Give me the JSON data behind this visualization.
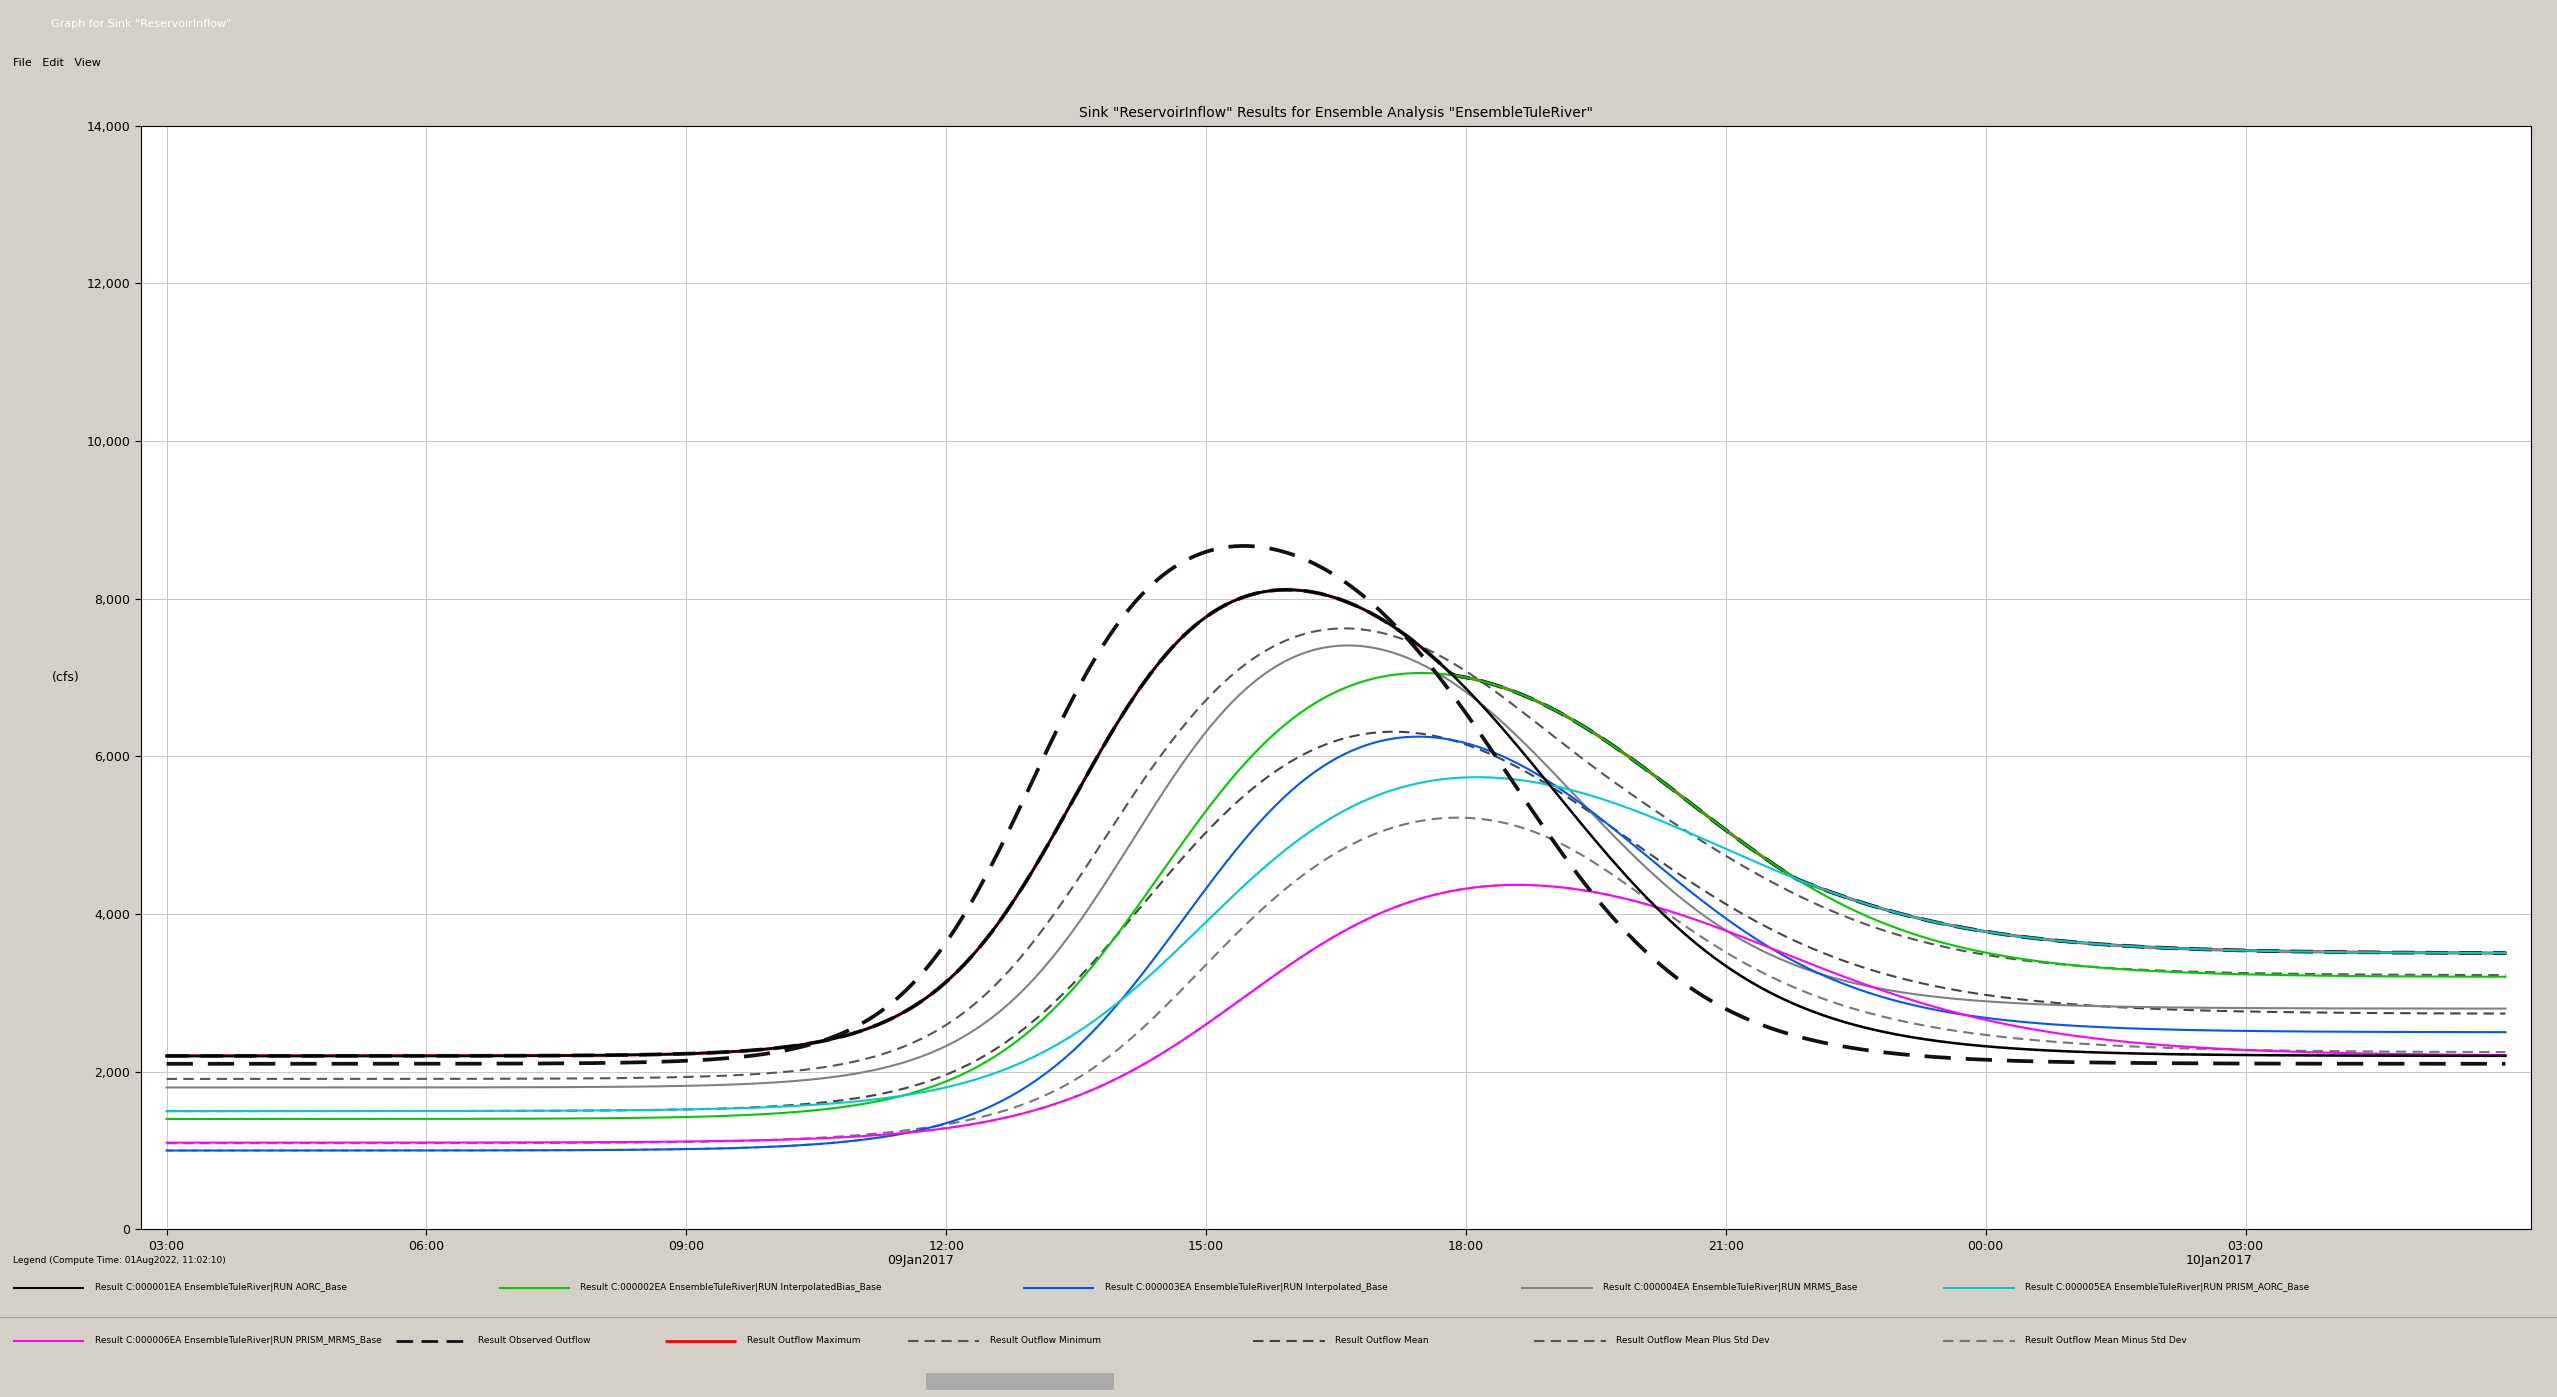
{
  "title": "Sink \"ReservoirInflow\" Results for Ensemble Analysis \"EnsembleTuleRiver\"",
  "ylabel": "(cfs)",
  "date_label_1": "09Jan2017",
  "date_label_2": "10Jan2017",
  "ylim": [
    0,
    14000
  ],
  "yticks": [
    0,
    2000,
    4000,
    6000,
    8000,
    10000,
    12000,
    14000
  ],
  "xtick_labels": [
    "03:00",
    "06:00",
    "09:00",
    "12:00",
    "15:00",
    "18:00",
    "21:00",
    "00:00",
    "03:00"
  ],
  "window_bg": "#d4d0c8",
  "toolbar_bg": "#e8e4dc",
  "plot_area_bg": "#ffffff",
  "grid_color": "#c8c8c8",
  "legend_text": "Legend (Compute Time: 01Aug2022, 11:02:10)",
  "colors": {
    "aorc": "#000000",
    "interp_bias": "#00cc00",
    "interp": "#0055ff",
    "mrms": "#808080",
    "prism_aorc": "#00cccc",
    "prism_mrms": "#ff00ff",
    "observed_dashed": "#333333",
    "max_solid_red": "#ff0000",
    "stat_dashed": "#555555"
  }
}
